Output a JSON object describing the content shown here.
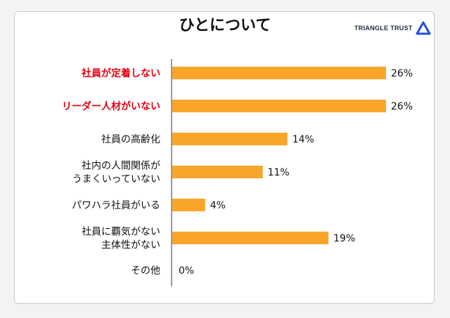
{
  "title": "ひとについて",
  "brand": {
    "name": "TRIANGLE TRUST",
    "logo_icon": "triangle-logo-icon",
    "logo_color": "#1f4fd8"
  },
  "colors": {
    "bar": "#f9a52a",
    "highlight_label": "#e60012",
    "normal_label": "#111111",
    "axis": "#333333"
  },
  "chart_data": {
    "type": "bar",
    "orientation": "horizontal",
    "title": "ひとについて",
    "xlabel": "",
    "ylabel": "",
    "xlim": [
      0,
      26
    ],
    "grid": false,
    "categories": [
      {
        "lines": [
          "社員が定着しない"
        ],
        "highlight": true
      },
      {
        "lines": [
          "リーダー人材がいない"
        ],
        "highlight": true
      },
      {
        "lines": [
          "社員の高齢化"
        ],
        "highlight": false
      },
      {
        "lines": [
          "社内の人間関係が",
          "うまくいっていない"
        ],
        "highlight": false
      },
      {
        "lines": [
          "パワハラ社員がいる"
        ],
        "highlight": false
      },
      {
        "lines": [
          "社員に覇気がない",
          "主体性がない"
        ],
        "highlight": false
      },
      {
        "lines": [
          "その他"
        ],
        "highlight": false
      }
    ],
    "values": [
      26,
      26,
      14,
      11,
      4,
      19,
      0
    ],
    "value_labels": [
      "26%",
      "26%",
      "14%",
      "11%",
      "4%",
      "19%",
      "0%"
    ]
  }
}
